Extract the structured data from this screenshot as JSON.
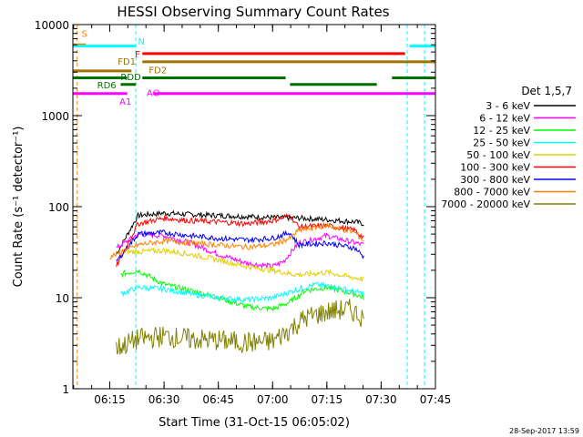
{
  "chart_data": {
    "type": "line",
    "title": "HESSI Observing Summary Count Rates",
    "xlabel": "Start Time (31-Oct-15 06:05:02)",
    "ylabel": "Count Rate (s⁻¹ detector⁻¹)",
    "footer": "28-Sep-2017 13:59",
    "x_range_min": [
      6.08,
      7.75
    ],
    "y_range": [
      1,
      10000
    ],
    "y_scale": "log",
    "x_ticks": [
      "06:15",
      "06:30",
      "06:45",
      "07:00",
      "07:15",
      "07:30",
      "07:45"
    ],
    "x_tick_values_hours": [
      6.25,
      6.5,
      6.75,
      7.0,
      7.25,
      7.5,
      7.75
    ],
    "y_ticks": [
      "1",
      "10",
      "100",
      "1000",
      "10000"
    ],
    "y_tick_values": [
      1,
      10,
      100,
      1000,
      10000
    ],
    "legend_title": "Det 1,5,7",
    "legend_position": "right",
    "series": [
      {
        "name": "3 - 6 keV",
        "color": "#000000",
        "points": [
          [
            6.28,
            30
          ],
          [
            6.38,
            80
          ],
          [
            6.5,
            85
          ],
          [
            6.62,
            82
          ],
          [
            6.75,
            80
          ],
          [
            6.88,
            78
          ],
          [
            7.0,
            76
          ],
          [
            7.12,
            75
          ],
          [
            7.25,
            72
          ],
          [
            7.38,
            68
          ],
          [
            7.42,
            65
          ]
        ]
      },
      {
        "name": "6 - 12 keV",
        "color": "#ff00ff",
        "points": [
          [
            6.28,
            35
          ],
          [
            6.38,
            50
          ],
          [
            6.5,
            48
          ],
          [
            6.62,
            40
          ],
          [
            6.75,
            30
          ],
          [
            6.88,
            24
          ],
          [
            7.0,
            22
          ],
          [
            7.05,
            25
          ],
          [
            7.12,
            40
          ],
          [
            7.25,
            48
          ],
          [
            7.38,
            40
          ],
          [
            7.42,
            38
          ]
        ]
      },
      {
        "name": "12 - 25 keV",
        "color": "#00ff00",
        "points": [
          [
            6.3,
            18
          ],
          [
            6.38,
            20
          ],
          [
            6.5,
            14
          ],
          [
            6.62,
            12
          ],
          [
            6.75,
            10
          ],
          [
            6.88,
            8
          ],
          [
            7.0,
            7.5
          ],
          [
            7.08,
            9
          ],
          [
            7.15,
            12
          ],
          [
            7.25,
            13
          ],
          [
            7.38,
            11
          ],
          [
            7.42,
            10
          ]
        ]
      },
      {
        "name": "25 - 50 keV",
        "color": "#00ffff",
        "points": [
          [
            6.3,
            11
          ],
          [
            6.38,
            13
          ],
          [
            6.5,
            12.5
          ],
          [
            6.62,
            11
          ],
          [
            6.75,
            10
          ],
          [
            6.88,
            9.5
          ],
          [
            7.0,
            10
          ],
          [
            7.1,
            12
          ],
          [
            7.2,
            14
          ],
          [
            7.3,
            13
          ],
          [
            7.42,
            11
          ]
        ]
      },
      {
        "name": "50 - 100 keV",
        "color": "#e0d000",
        "points": [
          [
            6.3,
            32
          ],
          [
            6.38,
            32
          ],
          [
            6.5,
            33
          ],
          [
            6.62,
            30
          ],
          [
            6.75,
            26
          ],
          [
            6.88,
            22
          ],
          [
            7.0,
            20
          ],
          [
            7.1,
            18
          ],
          [
            7.15,
            18
          ],
          [
            7.25,
            19
          ],
          [
            7.35,
            17
          ],
          [
            7.42,
            16
          ]
        ]
      },
      {
        "name": "100 - 300 keV",
        "color": "#ff0000",
        "points": [
          [
            6.28,
            22
          ],
          [
            6.38,
            65
          ],
          [
            6.5,
            75
          ],
          [
            6.62,
            70
          ],
          [
            6.75,
            68
          ],
          [
            6.88,
            65
          ],
          [
            7.0,
            70
          ],
          [
            7.08,
            80
          ],
          [
            7.12,
            60
          ],
          [
            7.25,
            62
          ],
          [
            7.38,
            55
          ],
          [
            7.42,
            45
          ]
        ]
      },
      {
        "name": "300 - 800 keV",
        "color": "#0000ff",
        "points": [
          [
            6.28,
            25
          ],
          [
            6.38,
            50
          ],
          [
            6.5,
            52
          ],
          [
            6.62,
            48
          ],
          [
            6.75,
            45
          ],
          [
            6.88,
            43
          ],
          [
            7.0,
            45
          ],
          [
            7.08,
            52
          ],
          [
            7.12,
            38
          ],
          [
            7.25,
            40
          ],
          [
            7.38,
            35
          ],
          [
            7.42,
            28
          ]
        ]
      },
      {
        "name": "800 - 7000 keV",
        "color": "#ff8000",
        "points": [
          [
            6.25,
            28
          ],
          [
            6.38,
            38
          ],
          [
            6.5,
            42
          ],
          [
            6.62,
            40
          ],
          [
            6.75,
            38
          ],
          [
            6.88,
            36
          ],
          [
            7.0,
            38
          ],
          [
            7.08,
            45
          ],
          [
            7.12,
            55
          ],
          [
            7.25,
            62
          ],
          [
            7.38,
            52
          ],
          [
            7.42,
            42
          ]
        ]
      },
      {
        "name": "7000 - 20000 keV",
        "color": "#808000",
        "points": [
          [
            6.28,
            2.8
          ],
          [
            6.38,
            3.5
          ],
          [
            6.5,
            3.8
          ],
          [
            6.62,
            3.5
          ],
          [
            6.75,
            3.4
          ],
          [
            6.88,
            3.2
          ],
          [
            7.0,
            3.3
          ],
          [
            7.08,
            4.5
          ],
          [
            7.15,
            6
          ],
          [
            7.25,
            7
          ],
          [
            7.35,
            7.5
          ],
          [
            7.42,
            6
          ]
        ]
      }
    ],
    "flag_bars": [
      {
        "label": "S",
        "color": "#ff8000",
        "y": 6000,
        "segments": [
          [
            6.08,
            6.14
          ]
        ],
        "label_x": 6.12,
        "label_anchor": "start",
        "label_y": 8000
      },
      {
        "label": "N",
        "color": "#00ffff",
        "y": 5800,
        "segments": [
          [
            6.08,
            6.37
          ],
          [
            7.63,
            7.75
          ]
        ],
        "label_x": 6.38,
        "label_anchor": "start",
        "label_y": 6600
      },
      {
        "label": "F",
        "color": "#ff0000",
        "y": 4800,
        "segments": [
          [
            6.4,
            7.61
          ]
        ],
        "label_x": 6.39,
        "label_anchor": "end",
        "label_y": 4800
      },
      {
        "label": "FD1",
        "color": "#a07000",
        "y": 3900,
        "segments": [
          [
            6.4,
            7.75
          ]
        ],
        "label_x": 6.37,
        "label_anchor": "end",
        "label_y": 4000
      },
      {
        "label": "FD2",
        "color": "#a07000",
        "y": 3100,
        "segments": [
          [
            6.08,
            6.35
          ]
        ],
        "label_x": 6.43,
        "label_anchor": "start",
        "label_y": 3200
      },
      {
        "label": "RDD",
        "color": "#007000",
        "y": 2600,
        "segments": [
          [
            6.08,
            6.33
          ],
          [
            6.4,
            7.06
          ],
          [
            7.55,
            7.75
          ]
        ],
        "label_x": 6.3,
        "label_anchor": "start",
        "label_y": 2700
      },
      {
        "label": "RD6",
        "color": "#007000",
        "y": 2200,
        "segments": [
          [
            6.3,
            6.37
          ],
          [
            7.08,
            7.48
          ]
        ],
        "label_x": 6.28,
        "label_anchor": "end",
        "label_y": 2200
      },
      {
        "label": "A1",
        "color": "#ff00ff",
        "y": 1750,
        "segments": [
          [
            6.08,
            6.33
          ],
          [
            6.45,
            7.75
          ]
        ],
        "label_x": 6.35,
        "label_anchor": "end",
        "label_y": 1450
      },
      {
        "label": "AO",
        "color": "#ff00ff",
        "y": 1750,
        "segments": [],
        "label_x": 6.42,
        "label_anchor": "start",
        "label_y": 1800
      }
    ]
  }
}
